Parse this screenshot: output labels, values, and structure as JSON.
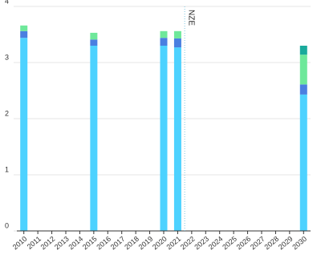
{
  "chart_data": {
    "type": "stacked-bar",
    "categories": [
      "2010",
      "2011",
      "2012",
      "2013",
      "2014",
      "2015",
      "2016",
      "2017",
      "2018",
      "2019",
      "2020",
      "2021",
      "2022",
      "2023",
      "2024",
      "2025",
      "2026",
      "2027",
      "2028",
      "2029",
      "2030"
    ],
    "series": [
      {
        "color": "#4dd2ff",
        "values": [
          3.44,
          null,
          null,
          null,
          null,
          3.3,
          null,
          null,
          null,
          null,
          3.3,
          3.27,
          null,
          null,
          null,
          null,
          null,
          null,
          null,
          null,
          2.43
        ]
      },
      {
        "color": "#4a7fe0",
        "values": [
          0.12,
          null,
          null,
          null,
          null,
          0.11,
          null,
          null,
          null,
          null,
          0.14,
          0.16,
          null,
          null,
          null,
          null,
          null,
          null,
          null,
          null,
          0.18
        ]
      },
      {
        "color": "#6ee89a",
        "values": [
          0.1,
          null,
          null,
          null,
          null,
          0.12,
          null,
          null,
          null,
          null,
          0.12,
          0.13,
          null,
          null,
          null,
          null,
          null,
          null,
          null,
          null,
          0.53
        ]
      },
      {
        "color": "#1aaa9c",
        "values": [
          null,
          null,
          null,
          null,
          null,
          null,
          null,
          null,
          null,
          null,
          null,
          null,
          null,
          null,
          null,
          null,
          null,
          null,
          null,
          null,
          0.16
        ]
      }
    ],
    "ylim": [
      0,
      4
    ],
    "yticks": [
      0,
      1,
      2,
      3,
      4
    ],
    "grid": true,
    "annotations": [
      {
        "text": "NZE",
        "after": "2021"
      }
    ]
  }
}
